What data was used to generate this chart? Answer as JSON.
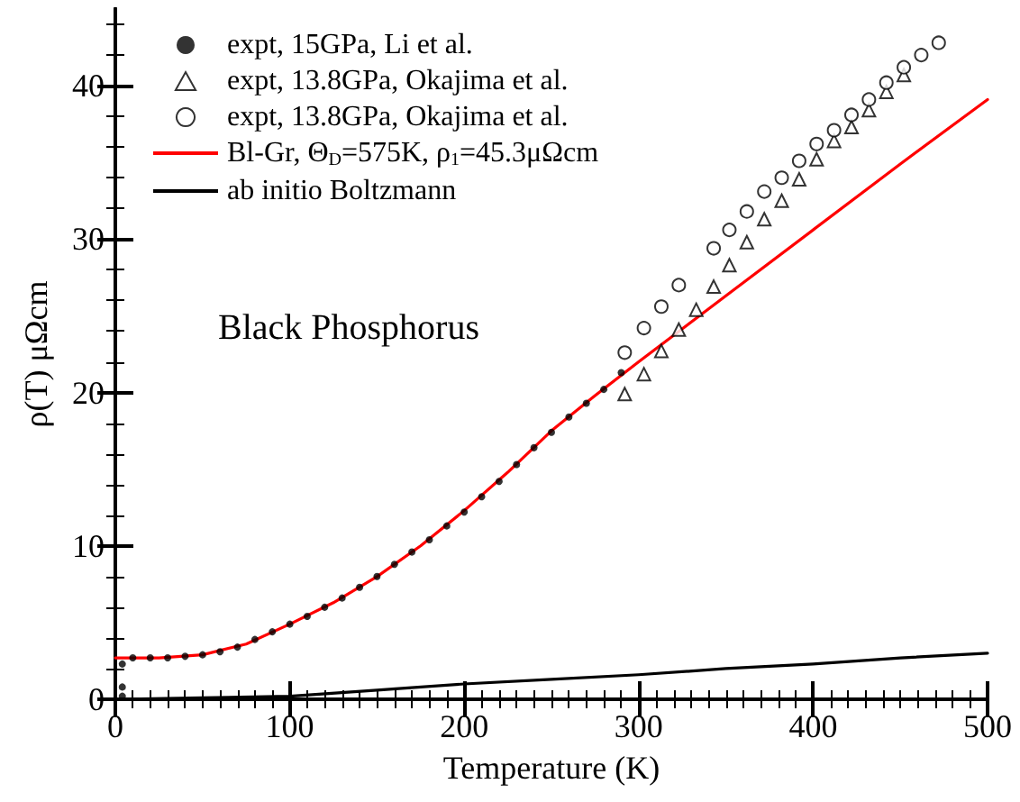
{
  "chart_data": {
    "type": "line",
    "xlabel": "Temperature (K)",
    "ylabel": "ρ(T) μΩcm",
    "annotations": [
      "Black Phosphorus"
    ],
    "xlim": [
      0,
      500
    ],
    "xticks": [
      0,
      100,
      200,
      300,
      400,
      500
    ],
    "ylim": [
      0,
      45
    ],
    "yticks": [
      0,
      10,
      20,
      30,
      40
    ],
    "grid": false,
    "legend": "top left",
    "series": [
      {
        "name": "expt, 15GPa, Li et al.",
        "type": "scatter",
        "marker": "circle",
        "color": "#000000",
        "x": [
          4,
          4,
          4,
          10,
          20,
          30,
          40,
          50,
          60,
          70,
          80,
          90,
          100,
          110,
          120,
          130,
          140,
          150,
          160,
          170,
          180,
          190,
          200,
          210,
          220,
          230,
          240,
          250,
          260,
          270,
          280,
          290
        ],
        "values": [
          2.3,
          0.8,
          0.2,
          2.7,
          2.7,
          2.7,
          2.8,
          2.9,
          3.1,
          3.4,
          3.9,
          4.4,
          4.9,
          5.4,
          6.0,
          6.6,
          7.3,
          8.0,
          8.8,
          9.6,
          10.4,
          11.3,
          12.2,
          13.2,
          14.2,
          15.3,
          16.4,
          17.4,
          18.4,
          19.3,
          20.2,
          21.3
        ]
      },
      {
        "name": "expt, 13.8GPa, Okajima et al.",
        "type": "scatter",
        "marker": "triangle",
        "color": "#000000",
        "x": [
          292,
          303,
          313,
          323,
          333,
          343,
          352,
          362,
          372,
          382,
          392,
          402,
          412,
          422,
          432,
          442,
          452
        ],
        "values": [
          19.9,
          21.2,
          22.7,
          24.1,
          25.4,
          26.9,
          28.3,
          29.8,
          31.3,
          32.5,
          33.9,
          35.2,
          36.4,
          37.3,
          38.4,
          39.6,
          40.7
        ]
      },
      {
        "name": "expt, 13.8GPa, Okajima et al.",
        "type": "scatter",
        "marker": "circle",
        "color": "#000000",
        "x": [
          292,
          303,
          313,
          323,
          343,
          352,
          362,
          372,
          382,
          392,
          402,
          412,
          422,
          432,
          442,
          452,
          462,
          472
        ],
        "values": [
          22.6,
          24.2,
          25.6,
          27.0,
          29.4,
          30.6,
          31.8,
          33.1,
          34.0,
          35.1,
          36.2,
          37.1,
          38.1,
          39.1,
          40.2,
          41.2,
          42.0,
          42.8
        ]
      },
      {
        "name": "Bl-Gr, Θ$_{D}$=575K, ρ$_{1}$=45.3μΩcm",
        "marker": "none",
        "line_style": "solid",
        "color": "#ff0000",
        "x": [
          0,
          25,
          50,
          75,
          100,
          125,
          150,
          175,
          200,
          225,
          250,
          275,
          300,
          350,
          400,
          450,
          500
        ],
        "values": [
          2.7,
          2.7,
          2.9,
          3.6,
          4.9,
          6.3,
          8.0,
          10.0,
          12.3,
          14.8,
          17.5,
          19.8,
          22.0,
          26.3,
          30.6,
          34.9,
          39.1
        ]
      },
      {
        "name": "ab initio Boltzmann",
        "marker": "none",
        "line_style": "solid",
        "color": "#000000",
        "x": [
          0,
          50,
          100,
          150,
          200,
          250,
          300,
          350,
          400,
          450,
          500
        ],
        "values": [
          0,
          0.1,
          0.2,
          0.6,
          1.0,
          1.3,
          1.6,
          2.0,
          2.3,
          2.7,
          3.0
        ]
      }
    ]
  }
}
